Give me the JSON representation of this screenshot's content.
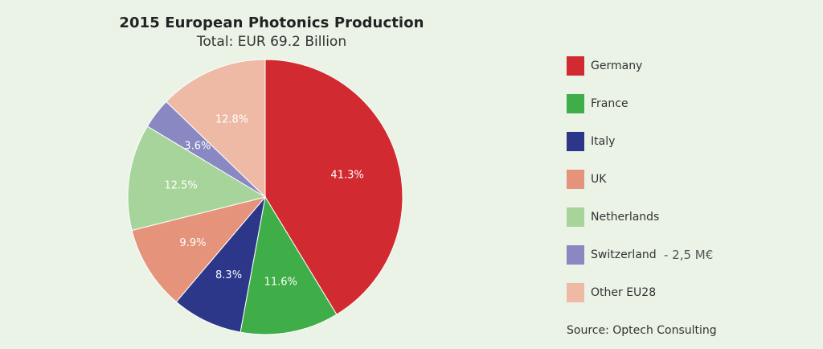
{
  "chart_data": {
    "type": "pie",
    "title": "2015 European Photonics Production",
    "subtitle": "Total: EUR 69.2 Billion",
    "slices": [
      {
        "name": "Germany",
        "value": 41.3,
        "label": "41.3%",
        "color": "#d12a30"
      },
      {
        "name": "France",
        "value": 11.6,
        "label": "11.6%",
        "color": "#3fae49"
      },
      {
        "name": "Italy",
        "value": 8.3,
        "label": "8.3%",
        "color": "#2c378a"
      },
      {
        "name": "UK",
        "value": 9.9,
        "label": "9.9%",
        "color": "#e5937a"
      },
      {
        "name": "Netherlands",
        "value": 12.5,
        "label": "12.5%",
        "color": "#a6d49a"
      },
      {
        "name": "Switzerland",
        "value": 3.6,
        "label": "3.6%",
        "color": "#8a88c2"
      },
      {
        "name": "Other EU28",
        "value": 12.8,
        "label": "12.8%",
        "color": "#eebaa5"
      }
    ],
    "legend_placement": "right",
    "start_angle": "12 o'clock, clockwise"
  },
  "legend_note": "- 2,5 M€",
  "source": "Source: Optech Consulting"
}
